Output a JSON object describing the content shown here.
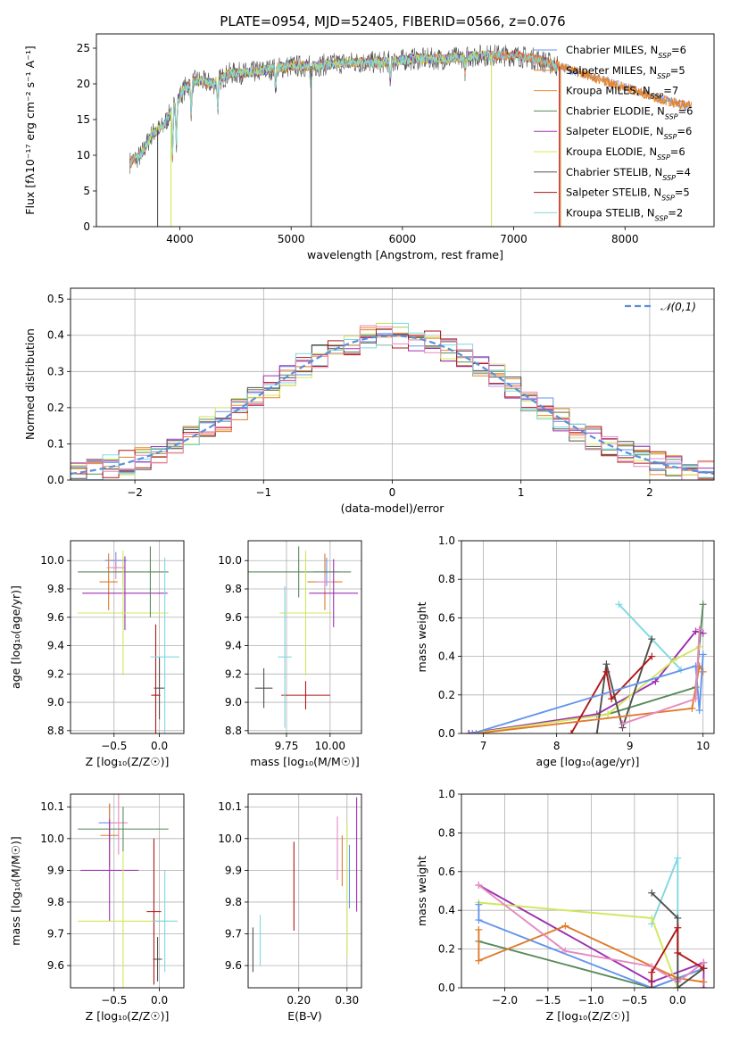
{
  "figure_title": "PLATE=0954, MJD=52405, FIBERID=0566, z=0.076",
  "colors": {
    "chabrier_miles": "#6495ed",
    "salpeter_miles": "#e07b2a",
    "kroupa_miles": "#e8882d",
    "chabrier_elodie": "#5a8a5a",
    "salpeter_elodie": "#9b30b0",
    "kroupa_elodie": "#cfe85a",
    "chabrier_stelib": "#505050",
    "salpeter_stelib": "#b01818",
    "kroupa_stelib": "#80d8e0",
    "pink": "#e58ac0",
    "gauss": "#5b8fd8",
    "grid": "#b0b0b0"
  },
  "chart_data": [
    {
      "id": "spectrum",
      "type": "line",
      "xlabel": "wavelength [Angstrom, rest frame]",
      "ylabel": "Flux [fλ10⁻¹⁷ erg cm⁻² s⁻¹ A⁻¹]",
      "xlim": [
        3250,
        8800
      ],
      "ylim": [
        0,
        27
      ],
      "xticks": [
        4000,
        5000,
        6000,
        7000,
        8000
      ],
      "yticks": [
        0,
        5,
        10,
        15,
        20,
        25
      ],
      "grid": false,
      "legend_position": "right",
      "legend": [
        "Chabrier MILES, NSSP=6",
        "Salpeter MILES, NSSP=5",
        "Kroupa MILES, NSSP=7",
        "Chabrier ELODIE, NSSP=6",
        "Salpeter ELODIE, NSSP=6",
        "Kroupa ELODIE, NSSP=6",
        "Chabrier STELIB, NSSP=4",
        "Salpeter STELIB, NSSP=5",
        "Kroupa STELIB, NSSP=2"
      ],
      "envelope": {
        "x": [
          3550,
          3650,
          3750,
          3850,
          3950,
          4050,
          4150,
          4300,
          4450,
          4600,
          4800,
          5000,
          5200,
          5500,
          5800,
          6100,
          6400,
          6700,
          7000,
          7200,
          7400,
          7600,
          7800,
          8000,
          8200,
          8400,
          8600
        ],
        "y": [
          9,
          10,
          13,
          14,
          17,
          19.5,
          20.5,
          20,
          21.5,
          21.5,
          22,
          22.5,
          22.5,
          23,
          23,
          23.5,
          23.5,
          24,
          24,
          23.5,
          22.5,
          21.5,
          20.5,
          19.5,
          18.5,
          17.5,
          16.8
        ]
      }
    },
    {
      "id": "residuals",
      "type": "histogram",
      "xlabel": "(data-model)/error",
      "ylabel": "Normed distribution",
      "xlim": [
        -2.5,
        2.5
      ],
      "ylim": [
        0,
        0.53
      ],
      "xticks": [
        -2,
        -1,
        0,
        1,
        2
      ],
      "yticks": [
        0.0,
        0.1,
        0.2,
        0.3,
        0.4,
        0.5
      ],
      "grid": true,
      "legend_position": "top-right",
      "legend": [
        "𝒩(0,1)"
      ]
    },
    {
      "id": "age_vs_Z",
      "type": "scatter",
      "xlabel": "Z [log₁₀(Z/Z☉)]",
      "ylabel": "age  [log₁₀(age/yr)]",
      "xlim": [
        -0.98,
        0.27
      ],
      "ylim": [
        8.78,
        10.14
      ],
      "xticks": [
        -0.5,
        0.0
      ],
      "yticks": [
        8.8,
        9.0,
        9.2,
        9.4,
        9.6,
        9.8,
        10.0
      ],
      "grid": true,
      "points": [
        {
          "x": -0.48,
          "y": 10.0,
          "xerr": 0.12,
          "yerr": 0.06,
          "c": "chabrier_miles"
        },
        {
          "x": -0.56,
          "y": 9.85,
          "xerr": 0.1,
          "yerr": 0.2,
          "c": "salpeter_miles"
        },
        {
          "x": -0.48,
          "y": 9.95,
          "xerr": 0.1,
          "yerr": 0.08,
          "c": "pink"
        },
        {
          "x": -0.4,
          "y": 9.92,
          "xerr": 0.5,
          "yerr": 0.1,
          "c": "chabrier_elodie"
        },
        {
          "x": -0.38,
          "y": 9.77,
          "xerr": 0.47,
          "yerr": 0.26,
          "c": "salpeter_elodie"
        },
        {
          "x": -0.4,
          "y": 9.63,
          "xerr": 0.5,
          "yerr": 0.44,
          "c": "kroupa_elodie"
        },
        {
          "x": 0.0,
          "y": 9.1,
          "xerr": 0.06,
          "yerr": 0.22,
          "c": "chabrier_stelib"
        },
        {
          "x": -0.04,
          "y": 9.05,
          "xerr": 0.05,
          "yerr": 0.5,
          "c": "salpeter_stelib"
        },
        {
          "x": 0.06,
          "y": 9.32,
          "xerr": 0.16,
          "yerr": 0.7,
          "c": "kroupa_stelib"
        },
        {
          "x": -0.1,
          "y": 9.85,
          "xerr": 0.0,
          "yerr": 0.25,
          "c": "chabrier_elodie"
        }
      ]
    },
    {
      "id": "age_vs_mass",
      "type": "scatter",
      "xlabel": "mass [log₁₀(M/M☉)]",
      "ylabel": "",
      "xlim": [
        9.53,
        10.18
      ],
      "ylim": [
        8.78,
        10.14
      ],
      "xticks": [
        9.75,
        10.0
      ],
      "yticks": [
        8.8,
        9.0,
        9.2,
        9.4,
        9.6,
        9.8,
        10.0
      ],
      "grid": true,
      "points": [
        {
          "x": 9.98,
          "y": 9.92,
          "xerr": 0.07,
          "yerr": 0.1,
          "c": "chabrier_miles"
        },
        {
          "x": 9.97,
          "y": 9.85,
          "xerr": 0.1,
          "yerr": 0.2,
          "c": "salpeter_miles"
        },
        {
          "x": 9.97,
          "y": 9.85,
          "xerr": 0.05,
          "yerr": 0.06,
          "c": "pink"
        },
        {
          "x": 9.82,
          "y": 9.92,
          "xerr": 0.3,
          "yerr": 0.18,
          "c": "chabrier_elodie"
        },
        {
          "x": 10.02,
          "y": 9.77,
          "xerr": 0.14,
          "yerr": 0.24,
          "c": "salpeter_elodie"
        },
        {
          "x": 9.86,
          "y": 9.63,
          "xerr": 0.15,
          "yerr": 0.44,
          "c": "kroupa_elodie"
        },
        {
          "x": 9.62,
          "y": 9.1,
          "xerr": 0.05,
          "yerr": 0.14,
          "c": "chabrier_stelib"
        },
        {
          "x": 9.86,
          "y": 9.05,
          "xerr": 0.14,
          "yerr": 0.1,
          "c": "salpeter_stelib"
        },
        {
          "x": 9.74,
          "y": 9.32,
          "xerr": 0.04,
          "yerr": 0.5,
          "c": "kroupa_stelib"
        }
      ]
    },
    {
      "id": "weight_vs_age",
      "type": "line",
      "xlabel": "age  [log₁₀(age/yr)]",
      "ylabel": "mass weight",
      "xlim": [
        6.7,
        10.15
      ],
      "ylim": [
        0,
        1.0
      ],
      "xticks": [
        7,
        8,
        9,
        10
      ],
      "yticks": [
        0.0,
        0.2,
        0.4,
        0.6,
        0.8,
        1.0
      ],
      "grid": true,
      "series": [
        {
          "c": "kroupa_stelib",
          "x": [
            8.85,
            9.7
          ],
          "y": [
            0.67,
            0.33
          ]
        },
        {
          "c": "chabrier_elodie",
          "x": [
            6.8,
            8.7,
            9.9,
            10.0
          ],
          "y": [
            0.0,
            0.1,
            0.24,
            0.67
          ]
        },
        {
          "c": "salpeter_elodie",
          "x": [
            6.8,
            8.55,
            9.35,
            9.9,
            10.0
          ],
          "y": [
            0.0,
            0.1,
            0.27,
            0.53,
            0.52
          ]
        },
        {
          "c": "kroupa_elodie",
          "x": [
            6.85,
            8.7,
            9.6,
            9.95
          ],
          "y": [
            0.0,
            0.1,
            0.38,
            0.45
          ]
        },
        {
          "c": "chabrier_stelib",
          "x": [
            8.55,
            8.68,
            8.9,
            9.3
          ],
          "y": [
            0.0,
            0.36,
            0.03,
            0.49
          ]
        },
        {
          "c": "salpeter_stelib",
          "x": [
            8.2,
            8.68,
            8.75,
            9.3
          ],
          "y": [
            0.0,
            0.32,
            0.18,
            0.4
          ]
        },
        {
          "c": "salpeter_miles",
          "x": [
            6.9,
            9.85,
            9.95,
            10.0
          ],
          "y": [
            0.0,
            0.13,
            0.35,
            0.32
          ]
        },
        {
          "c": "chabrier_miles",
          "x": [
            6.85,
            9.9,
            9.95,
            10.0
          ],
          "y": [
            0.0,
            0.35,
            0.12,
            0.41
          ]
        },
        {
          "c": "pink",
          "x": [
            8.9,
            9.9,
            9.95
          ],
          "y": [
            0.05,
            0.18,
            0.54
          ]
        }
      ]
    },
    {
      "id": "mass_vs_Z",
      "type": "scatter",
      "xlabel": "Z [log₁₀(Z/Z☉)]",
      "ylabel": "mass [log₁₀(M/M☉)]",
      "xlim": [
        -0.98,
        0.27
      ],
      "ylim": [
        9.53,
        10.14
      ],
      "xticks": [
        -0.5,
        0.0
      ],
      "yticks": [
        9.6,
        9.7,
        9.8,
        9.9,
        10.0,
        10.1
      ],
      "grid": true,
      "points": [
        {
          "x": -0.55,
          "y": 10.05,
          "xerr": 0.12,
          "yerr": 0.06,
          "c": "chabrier_miles"
        },
        {
          "x": -0.55,
          "y": 10.01,
          "xerr": 0.1,
          "yerr": 0.1,
          "c": "salpeter_miles"
        },
        {
          "x": -0.45,
          "y": 10.05,
          "xerr": 0.1,
          "yerr": 0.1,
          "c": "pink"
        },
        {
          "x": -0.4,
          "y": 10.03,
          "xerr": 0.5,
          "yerr": 0.07,
          "c": "chabrier_elodie"
        },
        {
          "x": -0.55,
          "y": 9.9,
          "xerr": 0.32,
          "yerr": 0.16,
          "c": "salpeter_elodie"
        },
        {
          "x": -0.4,
          "y": 9.74,
          "xerr": 0.5,
          "yerr": 0.22,
          "c": "kroupa_elodie"
        },
        {
          "x": -0.02,
          "y": 9.62,
          "xerr": 0.05,
          "yerr": 0.07,
          "c": "chabrier_stelib"
        },
        {
          "x": -0.06,
          "y": 9.77,
          "xerr": 0.08,
          "yerr": 0.23,
          "c": "salpeter_stelib"
        },
        {
          "x": 0.06,
          "y": 9.74,
          "xerr": 0.14,
          "yerr": 0.16,
          "c": "kroupa_stelib"
        }
      ]
    },
    {
      "id": "mass_vs_EBV",
      "type": "scatter",
      "xlabel": "E(B-V)",
      "ylabel": "",
      "xlim": [
        0.095,
        0.33
      ],
      "ylim": [
        9.53,
        10.14
      ],
      "xticks": [
        0.2,
        0.3
      ],
      "yticks": [
        9.6,
        9.7,
        9.8,
        9.9,
        10.0,
        10.1
      ],
      "grid": true,
      "points": [
        {
          "x": 0.105,
          "y": 9.65,
          "yerr": 0.07,
          "c": "chabrier_stelib"
        },
        {
          "x": 0.12,
          "y": 9.68,
          "yerr": 0.08,
          "c": "kroupa_stelib"
        },
        {
          "x": 0.19,
          "y": 9.85,
          "yerr": 0.14,
          "c": "salpeter_stelib"
        },
        {
          "x": 0.28,
          "y": 9.97,
          "yerr": 0.1,
          "c": "pink"
        },
        {
          "x": 0.29,
          "y": 9.93,
          "yerr": 0.08,
          "c": "salpeter_miles"
        },
        {
          "x": 0.3,
          "y": 9.84,
          "yerr": 0.21,
          "c": "kroupa_elodie"
        },
        {
          "x": 0.305,
          "y": 9.88,
          "yerr": 0.1,
          "c": "chabrier_miles"
        },
        {
          "x": 0.32,
          "y": 9.95,
          "yerr": 0.18,
          "c": "salpeter_elodie"
        }
      ]
    },
    {
      "id": "weight_vs_Z",
      "type": "line",
      "xlabel": "Z [log₁₀(Z/Z☉)]",
      "ylabel": "mass weight",
      "xlim": [
        -2.5,
        0.42
      ],
      "ylim": [
        0,
        1.0
      ],
      "xticks": [
        -2.0,
        -1.5,
        -1.0,
        -0.5,
        0.0
      ],
      "yticks": [
        0.0,
        0.2,
        0.4,
        0.6,
        0.8,
        1.0
      ],
      "grid": true,
      "series": [
        {
          "c": "kroupa_stelib",
          "x": [
            -0.3,
            0.0,
            0.0
          ],
          "y": [
            0.33,
            0.67,
            0.0
          ]
        },
        {
          "c": "salpeter_elodie",
          "x": [
            -2.3,
            -0.3,
            0.3,
            0.3
          ],
          "y": [
            0.53,
            0.03,
            0.13,
            0.0
          ]
        },
        {
          "c": "kroupa_elodie",
          "x": [
            -2.3,
            -0.3,
            0.0
          ],
          "y": [
            0.44,
            0.36,
            0.0
          ]
        },
        {
          "c": "chabrier_elodie",
          "x": [
            -2.3,
            -0.3,
            0.0
          ],
          "y": [
            0.24,
            0.0,
            0.05
          ]
        },
        {
          "c": "chabrier_miles",
          "x": [
            -2.3,
            -2.3,
            -0.3,
            0.3
          ],
          "y": [
            0.43,
            0.35,
            0.0,
            0.1
          ]
        },
        {
          "c": "salpeter_miles",
          "x": [
            -2.3,
            -2.3,
            -1.3,
            0.0,
            0.3
          ],
          "y": [
            0.3,
            0.14,
            0.32,
            0.05,
            0.03
          ]
        },
        {
          "c": "pink",
          "x": [
            -2.3,
            -1.3,
            -0.3,
            0.0,
            0.3
          ],
          "y": [
            0.53,
            0.19,
            0.11,
            0.03,
            0.13
          ]
        },
        {
          "c": "chabrier_stelib",
          "x": [
            -0.3,
            0.0,
            0.0,
            0.3
          ],
          "y": [
            0.49,
            0.36,
            0.0,
            0.1
          ]
        },
        {
          "c": "salpeter_stelib",
          "x": [
            -0.3,
            -0.3,
            0.0,
            0.0,
            0.3
          ],
          "y": [
            0.0,
            0.08,
            0.31,
            0.18,
            0.1
          ]
        }
      ]
    }
  ]
}
